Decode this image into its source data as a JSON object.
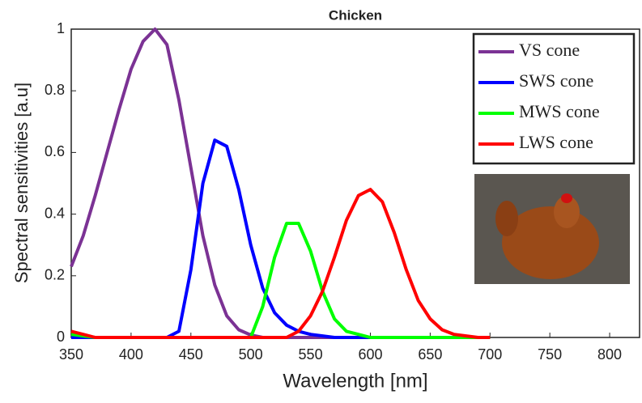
{
  "chart_data": {
    "type": "line",
    "title": "Chicken",
    "xlabel": "Wavelength [nm]",
    "ylabel": "Spectral sensitivities [a.u]",
    "x": [
      350,
      360,
      370,
      380,
      390,
      400,
      410,
      420,
      430,
      440,
      450,
      460,
      470,
      480,
      490,
      500,
      510,
      520,
      530,
      540,
      550,
      560,
      570,
      580,
      590,
      600,
      610,
      620,
      630,
      640,
      650,
      660,
      670,
      680,
      690,
      700
    ],
    "series": [
      {
        "name": "VS cone",
        "color": "#7b3294",
        "values": [
          0.23,
          0.33,
          0.46,
          0.6,
          0.74,
          0.87,
          0.96,
          1,
          0.95,
          0.77,
          0.55,
          0.33,
          0.17,
          0.07,
          0.025,
          0.008,
          0,
          0,
          0,
          0,
          0,
          0,
          0,
          0,
          0,
          0,
          0,
          0,
          0,
          0,
          0,
          0,
          0,
          0,
          0,
          0
        ]
      },
      {
        "name": "SWS cone",
        "color": "#0000ff",
        "values": [
          0,
          0,
          0,
          0,
          0,
          0,
          0,
          0,
          0,
          0.02,
          0.22,
          0.5,
          0.64,
          0.62,
          0.48,
          0.3,
          0.16,
          0.08,
          0.04,
          0.02,
          0.01,
          0.005,
          0,
          0,
          0,
          0,
          0,
          0,
          0,
          0,
          0,
          0,
          0,
          0,
          0,
          0
        ]
      },
      {
        "name": "MWS cone",
        "color": "#00ff00",
        "values": [
          0.01,
          0.005,
          0,
          0,
          0,
          0,
          0,
          0,
          0,
          0,
          0,
          0,
          0,
          0,
          0,
          0,
          0.1,
          0.26,
          0.37,
          0.37,
          0.28,
          0.15,
          0.06,
          0.02,
          0.01,
          0,
          0,
          0,
          0,
          0,
          0,
          0,
          0,
          0,
          0,
          0
        ]
      },
      {
        "name": "LWS cone",
        "color": "#ff0000",
        "values": [
          0.02,
          0.01,
          0,
          0,
          0,
          0,
          0,
          0,
          0,
          0,
          0,
          0,
          0,
          0,
          0,
          0,
          0,
          0,
          0,
          0.02,
          0.07,
          0.15,
          0.26,
          0.38,
          0.46,
          0.48,
          0.44,
          0.34,
          0.22,
          0.12,
          0.06,
          0.025,
          0.01,
          0.005,
          0,
          0
        ]
      }
    ],
    "xlim": [
      350,
      825
    ],
    "xticks": [
      350,
      400,
      450,
      500,
      550,
      600,
      650,
      700,
      750,
      800
    ],
    "ylim": [
      0,
      1
    ],
    "yticks": [
      0,
      0.2,
      0.4,
      0.6,
      0.8,
      1
    ],
    "grid": false,
    "legend": "upper right"
  }
}
